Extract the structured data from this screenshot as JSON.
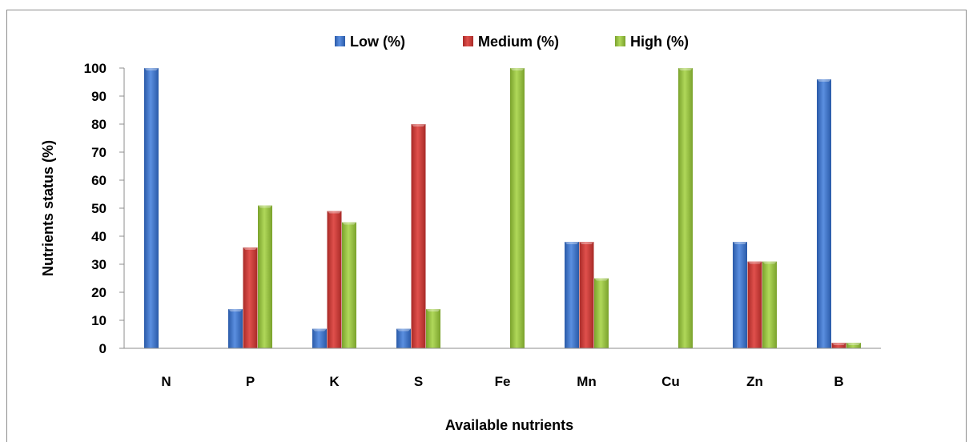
{
  "chart_data": {
    "type": "bar",
    "categories": [
      "N",
      "P",
      "K",
      "S",
      "Fe",
      "Mn",
      "Cu",
      "Zn",
      "B"
    ],
    "series": [
      {
        "name": "Low (%)",
        "color": "#3a6fc4",
        "values": [
          100,
          14,
          7,
          7,
          0,
          38,
          0,
          38,
          96
        ]
      },
      {
        "name": "Medium (%)",
        "color": "#c23a36",
        "values": [
          0,
          36,
          49,
          80,
          0,
          38,
          0,
          31,
          2
        ]
      },
      {
        "name": "High (%)",
        "color": "#8fb83a",
        "values": [
          0,
          51,
          45,
          14,
          100,
          25,
          100,
          31,
          2
        ]
      }
    ],
    "xlabel": "Available nutrients",
    "ylabel": "Nutrients  status (%)",
    "ylim": [
      0,
      100
    ],
    "yticks": [
      0,
      10,
      20,
      30,
      40,
      50,
      60,
      70,
      80,
      90,
      100
    ],
    "legend_position": "top",
    "grid": false
  }
}
